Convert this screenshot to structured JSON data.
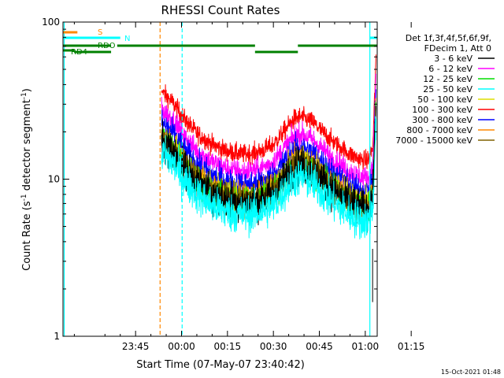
{
  "chart_data": {
    "type": "line",
    "title": "RHESSI Count Rates",
    "xlabel": "Start Time (07-May-07 23:40:42)",
    "ylabel": "Count Rate (s",
    "ylabel_sup1": "-1",
    "ylabel_mid": " detector segment",
    "ylabel_sup2": "-1",
    "ylabel_end": ")",
    "yscale": "log",
    "ylim": [
      1,
      100
    ],
    "xlim_min": [
      -23.7,
      78.9
    ],
    "yticks": [
      {
        "v": 1,
        "label": "1"
      },
      {
        "v": 10,
        "label": "10"
      },
      {
        "v": 100,
        "label": "100"
      }
    ],
    "xticks": [
      {
        "m": 0,
        "label": "23:45"
      },
      {
        "m": 15,
        "label": "00:00"
      },
      {
        "m": 30,
        "label": "00:15"
      },
      {
        "m": 45,
        "label": "00:30"
      },
      {
        "m": 60,
        "label": "00:45"
      },
      {
        "m": 75,
        "label": "01:00"
      },
      {
        "m": 90,
        "label": "01:15"
      }
    ],
    "legend_header": [
      "Det 1f,3f,4f,5f,6f,9f,",
      "FDecim 1, Att 0"
    ],
    "legend_position": "right",
    "timestamp": "15-Oct-2021 01:48",
    "series": [
      {
        "name": "3 - 6 keV",
        "color": "#000000",
        "factor": 0.98,
        "noise": 0.12
      },
      {
        "name": "6 - 12 keV",
        "color": "#ff00ff",
        "factor": 1.55,
        "noise": 0.07
      },
      {
        "name": "12 - 25 keV",
        "color": "#00dd00",
        "factor": 1.0,
        "noise": 0.09
      },
      {
        "name": "25 - 50 keV",
        "color": "#00ffff",
        "factor": 0.82,
        "noise": 0.12
      },
      {
        "name": "50 - 100 keV",
        "color": "#dddd00",
        "factor": 1.04,
        "noise": 0.1
      },
      {
        "name": "100 - 300 keV",
        "color": "#ff0000",
        "factor": 2.0,
        "noise": 0.06
      },
      {
        "name": "300 - 800 keV",
        "color": "#0000ff",
        "factor": 1.28,
        "noise": 0.08
      },
      {
        "name": "800 - 7000 keV",
        "color": "#ff8800",
        "factor": 1.05,
        "noise": 0.09
      },
      {
        "name": "7000 - 15000 keV",
        "color": "#806000",
        "factor": 1.02,
        "noise": 0.09
      }
    ],
    "baseline_profile": [
      {
        "t": 8.5,
        "v": 18.0
      },
      {
        "t": 12.0,
        "v": 15.5
      },
      {
        "t": 16.0,
        "v": 12.0
      },
      {
        "t": 20.0,
        "v": 9.8
      },
      {
        "t": 25.0,
        "v": 8.3
      },
      {
        "t": 30.0,
        "v": 7.5
      },
      {
        "t": 35.0,
        "v": 7.2
      },
      {
        "t": 40.0,
        "v": 7.4
      },
      {
        "t": 45.0,
        "v": 8.3
      },
      {
        "t": 48.0,
        "v": 9.8
      },
      {
        "t": 50.0,
        "v": 11.0
      },
      {
        "t": 52.0,
        "v": 12.2
      },
      {
        "t": 54.0,
        "v": 12.5
      },
      {
        "t": 56.0,
        "v": 12.0
      },
      {
        "t": 58.0,
        "v": 11.5
      },
      {
        "t": 61.0,
        "v": 10.0
      },
      {
        "t": 65.0,
        "v": 8.5
      },
      {
        "t": 70.0,
        "v": 7.2
      },
      {
        "t": 74.0,
        "v": 6.6
      },
      {
        "t": 76.0,
        "v": 6.6
      },
      {
        "t": 77.5,
        "v": 8.0
      },
      {
        "t": 78.5,
        "v": 30.0
      }
    ],
    "flag_bars": [
      {
        "label": "S",
        "color": "#ff8800",
        "segments": [
          [
            -23.7,
            -19.0
          ],
          [
            80.0,
            113.0
          ]
        ]
      },
      {
        "label": "N",
        "color": "#00ffff",
        "segments": [
          [
            -23.7,
            -5.0
          ],
          [
            76.5,
            113.0
          ]
        ]
      },
      {
        "label": "RDO",
        "color": "#008000",
        "segments": [
          [
            -23.7,
            -8.0
          ],
          [
            -6.0,
            39.0
          ],
          [
            53.0,
            113.0
          ]
        ]
      },
      {
        "label": "RD4",
        "color": "#008000",
        "segments": [
          [
            -23.7,
            -20.0
          ],
          [
            -20.0,
            -8.0
          ],
          [
            39.0,
            53.0
          ]
        ]
      }
    ],
    "vlines": [
      {
        "m": -23.3,
        "color": "#00ffff",
        "dashed": false
      },
      {
        "m": 8.0,
        "color": "#ff8800",
        "dashed": true
      },
      {
        "m": 15.2,
        "color": "#00ffff",
        "dashed": true
      },
      {
        "m": 76.5,
        "color": "#00ffff",
        "dashed": false
      },
      {
        "m": 80.0,
        "color": "#ff8800",
        "dashed": false
      },
      {
        "m": 90.2,
        "color": "#ff8800",
        "dashed": true
      },
      {
        "m": 90.6,
        "color": "#00ffff",
        "dashed": true
      }
    ]
  }
}
